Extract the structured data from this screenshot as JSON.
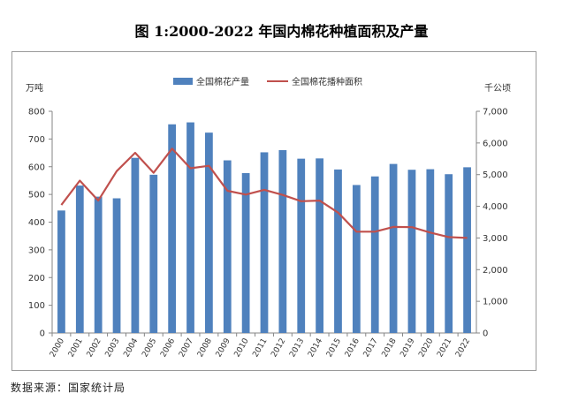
{
  "chart_data": {
    "type": "bar",
    "title": "图 1:2000-2022 年国内棉花种植面积及产量",
    "categories": [
      "2000",
      "2001",
      "2002",
      "2003",
      "2004",
      "2005",
      "2006",
      "2007",
      "2008",
      "2009",
      "2010",
      "2011",
      "2012",
      "2013",
      "2014",
      "2015",
      "2016",
      "2017",
      "2018",
      "2019",
      "2020",
      "2021",
      "2022"
    ],
    "series": [
      {
        "name": "全国棉花产量",
        "type": "bar",
        "axis": "left",
        "color": "#4f81bd",
        "values": [
          442,
          532,
          492,
          486,
          632,
          571,
          753,
          760,
          723,
          623,
          577,
          652,
          660,
          629,
          630,
          590,
          534,
          565,
          610,
          589,
          591,
          573,
          598
        ]
      },
      {
        "name": "全国棉花播种面积",
        "type": "line",
        "axis": "right",
        "color": "#c0504d",
        "values": [
          4040,
          4810,
          4180,
          5110,
          5690,
          5060,
          5820,
          5200,
          5280,
          4490,
          4370,
          4520,
          4360,
          4160,
          4180,
          3800,
          3200,
          3200,
          3350,
          3340,
          3170,
          3030,
          3000
        ]
      }
    ],
    "y_left": {
      "unit": "万吨",
      "min": 0,
      "max": 800,
      "step": 100,
      "ticks": [
        "0",
        "100",
        "200",
        "300",
        "400",
        "500",
        "600",
        "700",
        "800"
      ]
    },
    "y_right": {
      "unit": "千公顷",
      "min": 0,
      "max": 7000,
      "step": 1000,
      "ticks": [
        "0",
        "1,000",
        "2,000",
        "3,000",
        "4,000",
        "5,000",
        "6,000",
        "7,000"
      ]
    },
    "grid": false,
    "legend_position": "top-center"
  },
  "source_text": "数据来源：国家统计局"
}
